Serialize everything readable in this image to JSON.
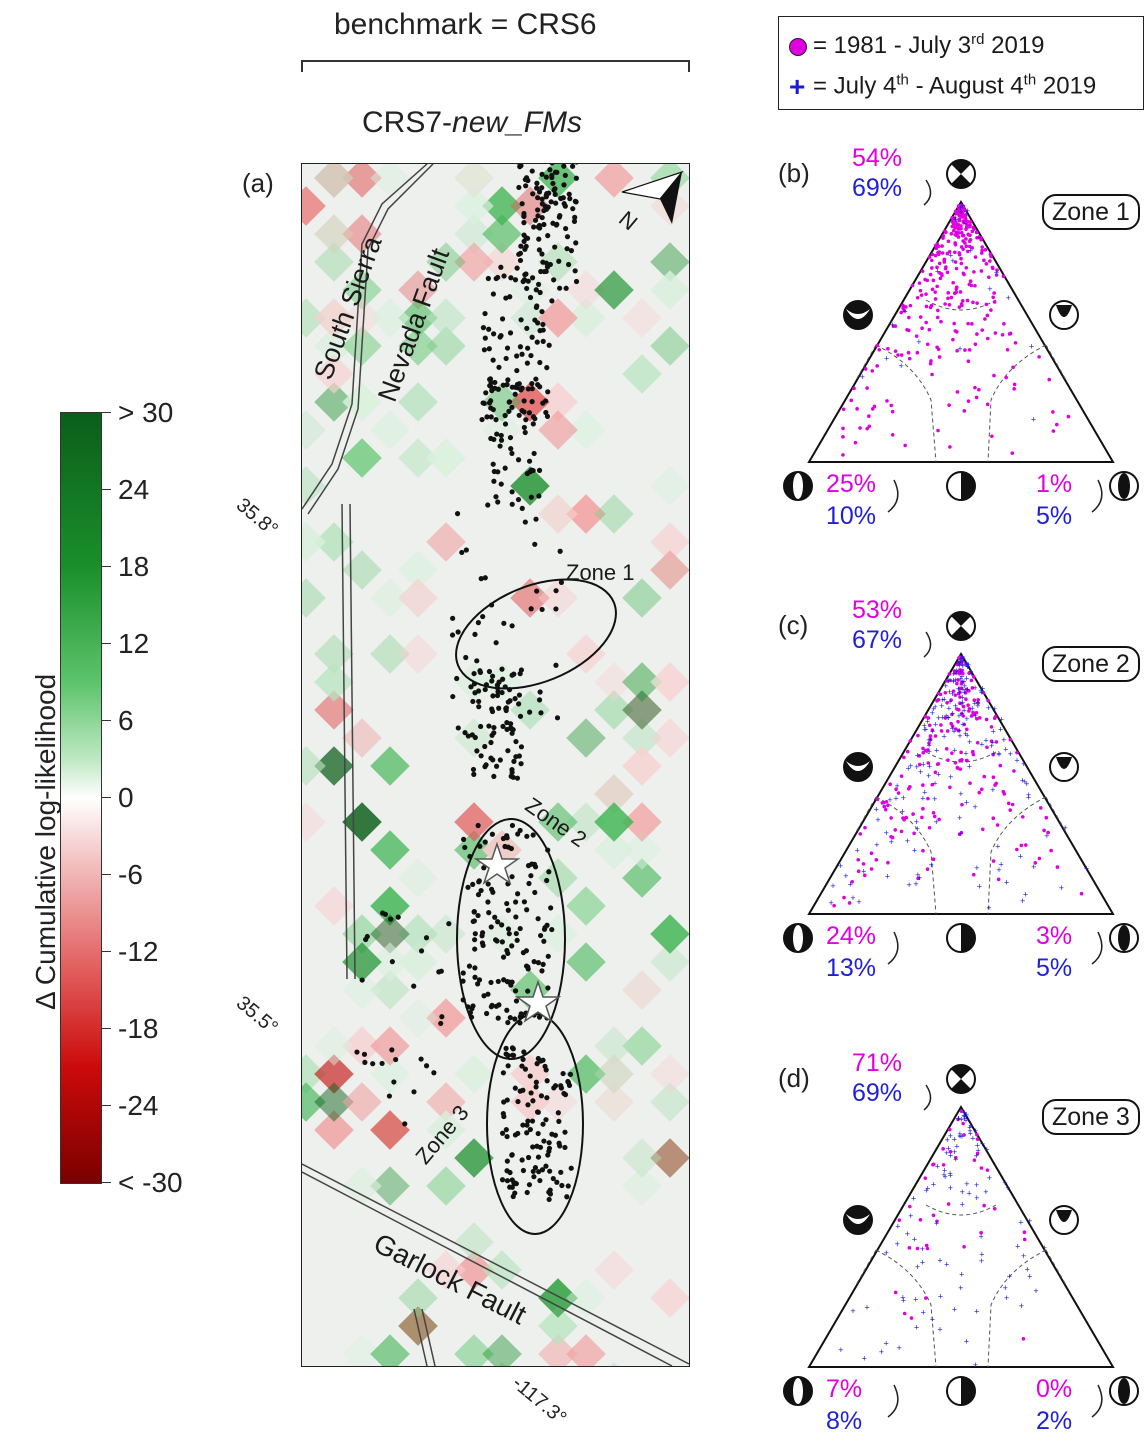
{
  "header": {
    "benchmark": "benchmark = CRS6",
    "model_prefix": "CRS7-",
    "model_suffix": "new_FMs"
  },
  "legend": {
    "row1_text": "= 1981 - July 3",
    "row1_sup": "rd",
    "row1_tail": " 2019",
    "row2_text": "= July 4",
    "row2_sup": "th",
    "row2_mid": " - August 4",
    "row2_sup2": "th",
    "row2_tail": " 2019",
    "marker_colors": {
      "pre": "#e000e0",
      "post": "#1a1ad8"
    }
  },
  "colorbar": {
    "title": "Δ Cumulative log-likelihood",
    "ticks": [
      "> 30",
      "24",
      "18",
      "12",
      "6",
      "0",
      "-6",
      "-12",
      "-18",
      "-24",
      "< -30"
    ]
  },
  "map": {
    "panel_label": "(a)",
    "faults": [
      "South Sierra",
      "Nevada Fault",
      "Garlock Fault"
    ],
    "zones": [
      "Zone 1",
      "Zone 2",
      "Zone 3"
    ],
    "lat_labels": [
      "35.8°",
      "35.5°"
    ],
    "lon_label": "-117.3°",
    "north": "N"
  },
  "panels": [
    {
      "label": "(b)",
      "zone": "Zone 1",
      "top_m": "54%",
      "top_b": "69%",
      "left_m": "25%",
      "left_b": "10%",
      "right_m": "1%",
      "right_b": "5%"
    },
    {
      "label": "(c)",
      "zone": "Zone 2",
      "top_m": "53%",
      "top_b": "67%",
      "left_m": "24%",
      "left_b": "13%",
      "right_m": "3%",
      "right_b": "5%"
    },
    {
      "label": "(d)",
      "zone": "Zone 3",
      "top_m": "71%",
      "top_b": "69%",
      "left_m": "7%",
      "left_b": "8%",
      "right_m": "0%",
      "right_b": "2%"
    }
  ]
}
